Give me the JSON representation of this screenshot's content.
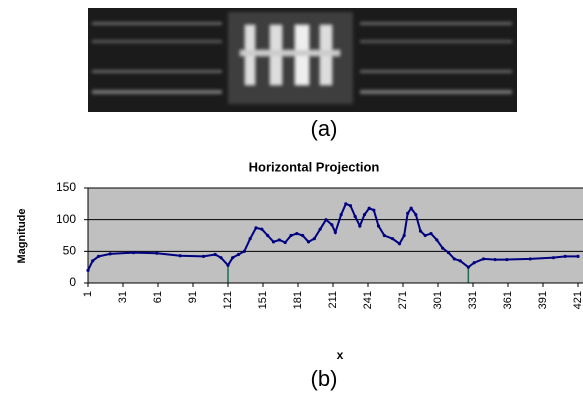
{
  "figure": {
    "label_a": "(a)",
    "label_b": "(b)"
  },
  "chart_data": {
    "type": "line",
    "title": "Horizontal Projection",
    "x_label": "x",
    "y_label": "Magnitude",
    "xlim": [
      1,
      421
    ],
    "xticks": [
      1,
      31,
      61,
      91,
      121,
      151,
      181,
      211,
      241,
      271,
      301,
      331,
      361,
      391,
      421
    ],
    "ylim": [
      0,
      150
    ],
    "yticks": [
      0,
      50,
      100,
      150
    ],
    "grid": true,
    "background": "#c0c0c0",
    "vlines": [
      121,
      327
    ],
    "vline_color": "#1f6b4f",
    "series": [
      {
        "color": "#000080",
        "x": [
          1,
          5,
          10,
          20,
          40,
          60,
          80,
          100,
          110,
          115,
          121,
          125,
          130,
          135,
          140,
          145,
          150,
          155,
          160,
          165,
          170,
          175,
          180,
          185,
          190,
          195,
          200,
          205,
          210,
          213,
          218,
          222,
          226,
          230,
          234,
          238,
          242,
          246,
          250,
          255,
          262,
          268,
          272,
          275,
          278,
          282,
          286,
          290,
          295,
          300,
          305,
          310,
          315,
          320,
          327,
          332,
          340,
          350,
          360,
          380,
          400,
          410,
          421
        ],
        "values": [
          20,
          35,
          42,
          46,
          48,
          47,
          43,
          42,
          45,
          40,
          28,
          40,
          45,
          50,
          70,
          87,
          85,
          75,
          65,
          68,
          64,
          75,
          78,
          75,
          65,
          70,
          85,
          100,
          92,
          80,
          108,
          125,
          122,
          105,
          90,
          108,
          118,
          115,
          90,
          75,
          70,
          62,
          75,
          110,
          118,
          108,
          82,
          75,
          78,
          68,
          55,
          48,
          38,
          35,
          25,
          32,
          38,
          37,
          37,
          38,
          40,
          42,
          42
        ]
      }
    ]
  }
}
